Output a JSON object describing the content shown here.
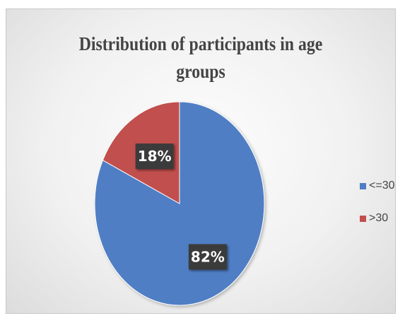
{
  "chart_data": {
    "type": "pie",
    "title": "Distribution of participants in age groups",
    "categories": [
      "<=30",
      ">30"
    ],
    "values": [
      82,
      18
    ],
    "data_labels": [
      "82%",
      "18%"
    ],
    "colors": [
      "#4f7ec4",
      "#c1504d"
    ],
    "legend_position": "right"
  }
}
